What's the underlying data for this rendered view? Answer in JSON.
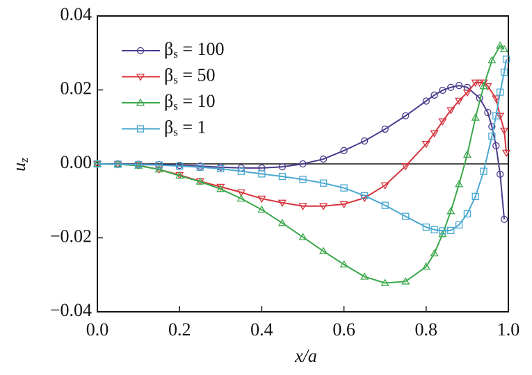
{
  "chart_data": {
    "type": "line",
    "xlabel": "x/a",
    "ylabel": "uz",
    "xlim": [
      0,
      1
    ],
    "ylim": [
      -0.04,
      0.04
    ],
    "xticks": [
      {
        "value": 0,
        "label": "0.0"
      },
      {
        "value": 0.2,
        "label": "0.2"
      },
      {
        "value": 0.4,
        "label": "0.4"
      },
      {
        "value": 0.6,
        "label": "0.6"
      },
      {
        "value": 0.8,
        "label": "0.8"
      },
      {
        "value": 1,
        "label": "1.0"
      }
    ],
    "yticks": [
      {
        "value": -0.04,
        "label": "−0.04"
      },
      {
        "value": -0.02,
        "label": "−0.02"
      },
      {
        "value": 0,
        "label": "0.00"
      },
      {
        "value": 0.02,
        "label": "0.02"
      },
      {
        "value": 0.04,
        "label": "0.04"
      }
    ],
    "hlines": [
      0
    ],
    "legend": "upper left",
    "series": [
      {
        "name": "βs = 100",
        "color": "#4b3a8c",
        "marker": "circle",
        "x": [
          0,
          0.05,
          0.1,
          0.15,
          0.2,
          0.25,
          0.3,
          0.35,
          0.4,
          0.45,
          0.5,
          0.55,
          0.6,
          0.65,
          0.7,
          0.75,
          0.8,
          0.82,
          0.84,
          0.86,
          0.88,
          0.9,
          0.93,
          0.95,
          0.96,
          0.97,
          0.98,
          0.99
        ],
        "values": [
          0,
          0,
          -0.0001,
          -0.0002,
          -0.0004,
          -0.0006,
          -0.0009,
          -0.0011,
          -0.0011,
          -0.0008,
          0,
          0.0013,
          0.0036,
          0.0062,
          0.0094,
          0.013,
          0.017,
          0.0186,
          0.0199,
          0.0207,
          0.0212,
          0.0207,
          0.0178,
          0.0139,
          0.0101,
          0.0049,
          -0.0028,
          -0.015
        ]
      },
      {
        "name": "βs = 50",
        "color": "#d7343f",
        "marker": "triangle-down",
        "x": [
          0,
          0.05,
          0.1,
          0.15,
          0.2,
          0.25,
          0.3,
          0.35,
          0.4,
          0.45,
          0.5,
          0.55,
          0.6,
          0.65,
          0.7,
          0.75,
          0.8,
          0.82,
          0.84,
          0.86,
          0.88,
          0.9,
          0.92,
          0.93,
          0.94,
          0.95,
          0.97,
          0.98,
          0.99,
          0.995
        ],
        "values": [
          0,
          -0.0001,
          -0.0004,
          -0.0015,
          -0.003,
          -0.0047,
          -0.0062,
          -0.0077,
          -0.0094,
          -0.0105,
          -0.0114,
          -0.0114,
          -0.0109,
          -0.0092,
          -0.0058,
          -0.0006,
          0.0054,
          0.0083,
          0.0115,
          0.0145,
          0.0171,
          0.0193,
          0.022,
          0.022,
          0.022,
          0.021,
          0.0177,
          0.013,
          0.009,
          0.003
        ]
      },
      {
        "name": "βs = 10",
        "color": "#3aa84a",
        "marker": "triangle-up",
        "x": [
          0,
          0.05,
          0.1,
          0.15,
          0.2,
          0.25,
          0.3,
          0.35,
          0.4,
          0.45,
          0.5,
          0.55,
          0.6,
          0.65,
          0.7,
          0.75,
          0.8,
          0.82,
          0.84,
          0.86,
          0.88,
          0.9,
          0.92,
          0.94,
          0.96,
          0.98,
          0.99
        ],
        "values": [
          0,
          -0.0001,
          -0.0005,
          -0.0015,
          -0.0032,
          -0.0048,
          -0.0068,
          -0.0094,
          -0.0124,
          -0.016,
          -0.0198,
          -0.0236,
          -0.0272,
          -0.0305,
          -0.0322,
          -0.0318,
          -0.0278,
          -0.0242,
          -0.019,
          -0.0128,
          -0.0055,
          0.0025,
          0.0125,
          0.021,
          0.028,
          0.032,
          0.031
        ]
      },
      {
        "name": "βs = 1",
        "color": "#4aa8d0",
        "marker": "square",
        "x": [
          0,
          0.05,
          0.1,
          0.15,
          0.2,
          0.25,
          0.3,
          0.35,
          0.4,
          0.45,
          0.5,
          0.55,
          0.6,
          0.65,
          0.7,
          0.75,
          0.8,
          0.82,
          0.84,
          0.86,
          0.88,
          0.9,
          0.92,
          0.94,
          0.96,
          0.97,
          0.98,
          0.99,
          0.995
        ],
        "values": [
          0,
          -0.0001,
          -0.0002,
          -0.0003,
          -0.0006,
          -0.0009,
          -0.0013,
          -0.002,
          -0.0027,
          -0.0034,
          -0.0042,
          -0.0052,
          -0.0065,
          -0.0086,
          -0.0112,
          -0.0142,
          -0.0171,
          -0.0178,
          -0.0181,
          -0.018,
          -0.0165,
          -0.0135,
          -0.0088,
          -0.002,
          0.0075,
          0.013,
          0.0194,
          0.0248,
          0.0283
        ]
      }
    ]
  }
}
